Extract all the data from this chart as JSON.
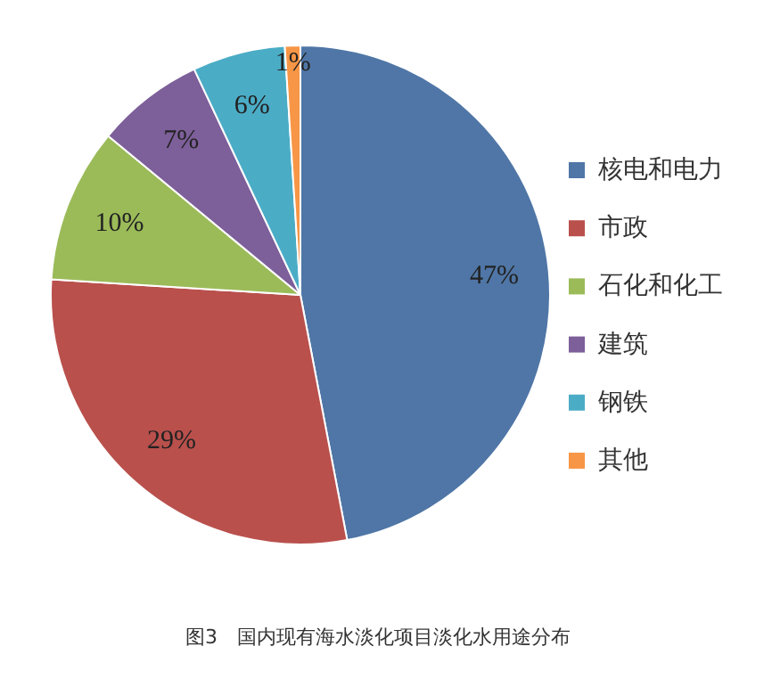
{
  "chart_data": {
    "type": "pie",
    "categories": [
      "核电和电力",
      "市政",
      "石化和化工",
      "建筑",
      "钢铁",
      "其他"
    ],
    "values": [
      47,
      29,
      10,
      7,
      6,
      1
    ],
    "colors": [
      "#4f76a6",
      "#b9504c",
      "#9bbb59",
      "#7d5f9a",
      "#4bacc6",
      "#f79646"
    ],
    "value_labels": [
      "47%",
      "29%",
      "10%",
      "7%",
      "6%",
      "1%"
    ],
    "legend": "right",
    "annotations": [
      "图3　国内现有海水淡化项目淡化水用途分布"
    ]
  }
}
